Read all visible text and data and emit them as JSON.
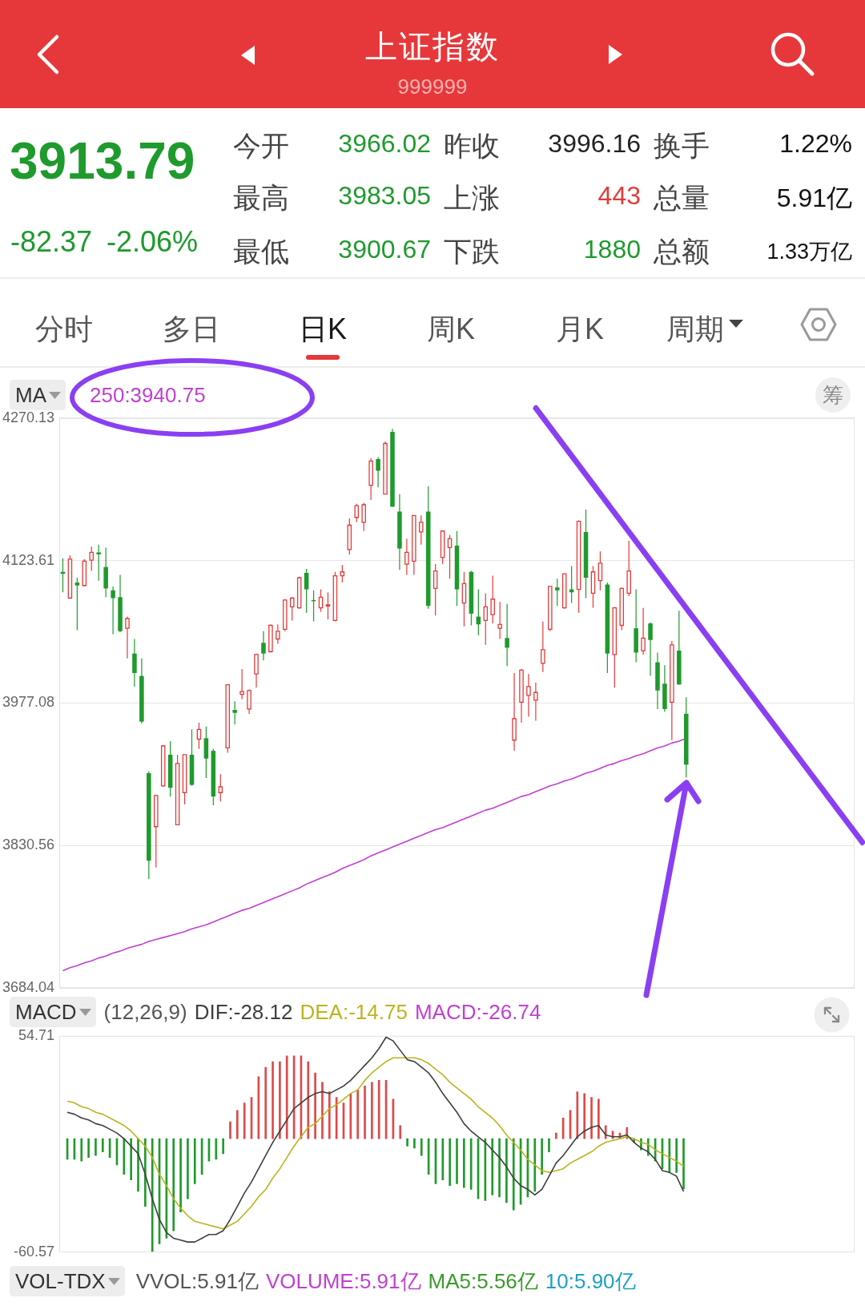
{
  "chart_data": [
    {
      "type": "other",
      "title": "上证指数",
      "subtitle": "999999",
      "annotations": [
        "3913.79",
        "-82.37",
        "-2.06%",
        "今开",
        "3966.02",
        "昨收",
        "3996.16",
        "换手",
        "1.22%",
        "最高",
        "3983.05",
        "上涨",
        "443",
        "总量",
        "5.91亿",
        "最低",
        "3900.67",
        "下跌",
        "1880",
        "总额",
        "1.33万亿",
        "分时",
        "多日",
        "日K",
        "周K",
        "月K",
        "周期"
      ]
    },
    {
      "type": "candlestick",
      "legend_title": "MA",
      "legend": "top left",
      "annotations": [
        "筹"
      ],
      "categories": [
        null,
        null,
        null,
        null,
        null,
        null,
        null,
        null,
        null,
        null,
        null,
        null,
        null,
        null,
        null,
        null,
        null,
        null,
        null,
        null,
        null,
        null,
        null,
        null,
        null,
        null,
        null,
        null,
        null,
        null,
        null,
        null,
        null,
        null,
        null,
        null,
        null,
        null,
        null,
        null,
        null,
        null,
        null,
        null,
        null,
        null,
        null,
        null,
        null,
        null,
        null,
        null,
        null,
        null,
        null,
        null,
        null,
        null,
        null,
        null,
        null,
        null,
        null,
        null,
        null,
        null,
        null,
        null,
        null,
        null,
        null,
        null,
        null,
        null,
        null,
        null,
        null,
        null,
        null,
        null,
        null,
        null,
        null,
        null,
        null,
        null,
        null,
        null
      ],
      "ohlc": [
        [
          4112,
          4126,
          4091,
          4110
        ],
        [
          4085,
          4129,
          4085,
          4125
        ],
        [
          4101,
          4106,
          4052,
          4098
        ],
        [
          4098,
          4125,
          4097,
          4123
        ],
        [
          4124,
          4138,
          4113,
          4132
        ],
        [
          4132,
          4140,
          4103,
          4130
        ],
        [
          4117,
          4137,
          4086,
          4095
        ],
        [
          4093,
          4097,
          4048,
          4085
        ],
        [
          4086,
          4109,
          4050,
          4051
        ],
        [
          4054,
          4066,
          4023,
          4064
        ],
        [
          4028,
          4043,
          3994,
          4008
        ],
        [
          4005,
          4023,
          3956,
          3958
        ],
        [
          3905,
          3907,
          3796,
          3815
        ],
        [
          3850,
          3883,
          3808,
          3882
        ],
        [
          3892,
          3934,
          3891,
          3933
        ],
        [
          3924,
          3938,
          3881,
          3890
        ],
        [
          3852,
          3924,
          3852,
          3915
        ],
        [
          3885,
          3924,
          3873,
          3924
        ],
        [
          3924,
          3950,
          3892,
          3893
        ],
        [
          3940,
          3957,
          3930,
          3950
        ],
        [
          3941,
          3953,
          3900,
          3920
        ],
        [
          3928,
          3930,
          3872,
          3881
        ],
        [
          3885,
          3904,
          3876,
          3891
        ],
        [
          3931,
          3996,
          3926,
          3996
        ],
        [
          3970,
          3979,
          3955,
          3967
        ],
        [
          3986,
          4012,
          3981,
          3989
        ],
        [
          3971,
          3991,
          3966,
          3990
        ],
        [
          4007,
          4028,
          3993,
          4027
        ],
        [
          4039,
          4051,
          4021,
          4028
        ],
        [
          4030,
          4058,
          4029,
          4057
        ],
        [
          4043,
          4058,
          4038,
          4051
        ],
        [
          4053,
          4084,
          4051,
          4083
        ],
        [
          4076,
          4086,
          4062,
          4085
        ],
        [
          4075,
          4107,
          4074,
          4106
        ],
        [
          4111,
          4115,
          4070,
          4094
        ],
        [
          4083,
          4093,
          4061,
          4082
        ],
        [
          4075,
          4094,
          4071,
          4086
        ],
        [
          4077,
          4091,
          4063,
          4078
        ],
        [
          4062,
          4112,
          4061,
          4108
        ],
        [
          4108,
          4119,
          4101,
          4112
        ],
        [
          4135,
          4167,
          4130,
          4160
        ],
        [
          4168,
          4182,
          4163,
          4180
        ],
        [
          4163,
          4183,
          4154,
          4181
        ],
        [
          4201,
          4229,
          4186,
          4226
        ],
        [
          4228,
          4230,
          4199,
          4216
        ],
        [
          4192,
          4246,
          4192,
          4244
        ],
        [
          4256,
          4259,
          4179,
          4179
        ],
        [
          4174,
          4192,
          4114,
          4136
        ],
        [
          4120,
          4146,
          4109,
          4132
        ],
        [
          4123,
          4170,
          4109,
          4170
        ],
        [
          4153,
          4170,
          4140,
          4163
        ],
        [
          4174,
          4200,
          4074,
          4077
        ],
        [
          4095,
          4120,
          4067,
          4113
        ],
        [
          4127,
          4154,
          4120,
          4154
        ],
        [
          4137,
          4150,
          4105,
          4146
        ],
        [
          4139,
          4154,
          4077,
          4094
        ],
        [
          4080,
          4112,
          4056,
          4100
        ],
        [
          4112,
          4113,
          4057,
          4069
        ],
        [
          4066,
          4094,
          4047,
          4058
        ],
        [
          4062,
          4090,
          4037,
          4076
        ],
        [
          4068,
          4108,
          4059,
          4084
        ],
        [
          4054,
          4081,
          4043,
          4058
        ],
        [
          4044,
          4079,
          4015,
          4034
        ],
        [
          3939,
          4008,
          3928,
          3961
        ],
        [
          3978,
          4012,
          3957,
          4011
        ],
        [
          3985,
          4007,
          3963,
          3994
        ],
        [
          3980,
          3998,
          3959,
          3988
        ],
        [
          4018,
          4061,
          4009,
          4032
        ],
        [
          4053,
          4097,
          4051,
          4097
        ],
        [
          4096,
          4105,
          4077,
          4093
        ],
        [
          4075,
          4110,
          4074,
          4110
        ],
        [
          4094,
          4118,
          4080,
          4091
        ],
        [
          4094,
          4165,
          4070,
          4164
        ],
        [
          4153,
          4176,
          4085,
          4106
        ],
        [
          4090,
          4118,
          4075,
          4112
        ],
        [
          4103,
          4133,
          4093,
          4121
        ],
        [
          4099,
          4101,
          4008,
          4028
        ],
        [
          4027,
          4076,
          3993,
          4075
        ],
        [
          4057,
          4096,
          4052,
          4095
        ],
        [
          4090,
          4144,
          4087,
          4113
        ],
        [
          4054,
          4094,
          4019,
          4029
        ],
        [
          4031,
          4075,
          4027,
          4044
        ],
        [
          4059,
          4060,
          4005,
          4042
        ],
        [
          4019,
          4029,
          3971,
          3990
        ],
        [
          3997,
          4016,
          3968,
          3971
        ],
        [
          3978,
          4041,
          3939,
          4037
        ],
        [
          4031,
          4072,
          3996.16,
          3996.16
        ],
        [
          3966.02,
          3983.05,
          3900.67,
          3913.79
        ]
      ],
      "series": [
        {
          "type": "line",
          "name": "250:3940.75",
          "color": "#c03fd0",
          "values": [
            3702,
            3705,
            3707,
            3710,
            3712,
            3715,
            3717,
            3720,
            3722,
            3725,
            3727,
            3729,
            3732,
            3734,
            3736,
            3738,
            3740,
            3742,
            3745,
            3747,
            3749,
            3752,
            3755,
            3758,
            3761,
            3764,
            3766,
            3769,
            3772,
            3775,
            3778,
            3781,
            3784,
            3787,
            3791,
            3794,
            3797,
            3800,
            3803,
            3807,
            3810,
            3813,
            3816,
            3820,
            3823,
            3826,
            3829,
            3832,
            3835,
            3838,
            3841,
            3844,
            3847,
            3849,
            3852,
            3855,
            3858,
            3861,
            3864,
            3867,
            3869,
            3872,
            3875,
            3878,
            3881,
            3883,
            3886,
            3889,
            3892,
            3894,
            3897,
            3899,
            3902,
            3905,
            3907,
            3910,
            3913,
            3915,
            3918,
            3920,
            3923,
            3925,
            3928,
            3931,
            3933,
            3936,
            3938,
            3940.75
          ]
        }
      ],
      "ylim": [
        3684.04,
        4270.13
      ],
      "yticks": [
        3684.04,
        3830.56,
        3977.08,
        4123.61,
        4270.13
      ],
      "grid": "y",
      "tick_labels": "y"
    },
    {
      "type": "bar",
      "legend_title": "MACD",
      "subtitle": "(12,26,9)",
      "legend": "top left",
      "annotations": [
        "MACD:-26.74"
      ],
      "categories": [
        null,
        null,
        null,
        null,
        null,
        null,
        null,
        null,
        null,
        null,
        null,
        null,
        null,
        null,
        null,
        null,
        null,
        null,
        null,
        null,
        null,
        null,
        null,
        null,
        null,
        null,
        null,
        null,
        null,
        null,
        null,
        null,
        null,
        null,
        null,
        null,
        null,
        null,
        null,
        null,
        null,
        null,
        null,
        null,
        null,
        null,
        null,
        null,
        null,
        null,
        null,
        null,
        null,
        null,
        null,
        null,
        null,
        null,
        null,
        null,
        null,
        null,
        null,
        null,
        null,
        null,
        null,
        null,
        null,
        null,
        null,
        null,
        null,
        null,
        null,
        null,
        null,
        null,
        null,
        null,
        null,
        null,
        null,
        null,
        null,
        null,
        null,
        null
      ],
      "series": [
        {
          "type": "line",
          "name": "DIF:-28.12",
          "color": "#3f3f3f",
          "values": [
            14,
            13,
            11,
            10,
            8,
            7,
            5,
            3,
            0,
            -4,
            -8,
            -19,
            -32,
            -43,
            -50,
            -53,
            -54,
            -55,
            -55,
            -53,
            -51,
            -51,
            -49,
            -43,
            -36,
            -29,
            -23,
            -16,
            -9,
            -2,
            4,
            10,
            16,
            19,
            22,
            24,
            25,
            24,
            26,
            28,
            31,
            35,
            39,
            43,
            48,
            54,
            52,
            47,
            42,
            41,
            38,
            35,
            30,
            24,
            19,
            14,
            8,
            4,
            1,
            -2,
            -6,
            -10,
            -15,
            -21,
            -25,
            -27,
            -30,
            -27,
            -20,
            -13,
            -9,
            -4,
            1,
            4,
            6,
            7,
            2,
            1,
            1,
            2,
            -2,
            -5,
            -7,
            -11,
            -17,
            -18,
            -20,
            -28.12
          ]
        },
        {
          "type": "line",
          "name": "DEA:-14.75",
          "color": "#bdb31e",
          "values": [
            20,
            19,
            17,
            16,
            14,
            13,
            11,
            9,
            7,
            4,
            0,
            -4,
            -10,
            -19,
            -25,
            -32,
            -37,
            -41,
            -44,
            -45,
            -46,
            -47,
            -48,
            -46,
            -44,
            -40,
            -36,
            -31,
            -27,
            -21,
            -16,
            -10,
            -4,
            1,
            6,
            8,
            12,
            16,
            18,
            21,
            24,
            26,
            31,
            35,
            38,
            41,
            43,
            43,
            43,
            43,
            42,
            40,
            37,
            34,
            30,
            27,
            24,
            21,
            17,
            14,
            11,
            7,
            2,
            -2,
            -6,
            -11,
            -14,
            -17,
            -18,
            -17,
            -16,
            -13,
            -11,
            -9,
            -7,
            -4,
            -2,
            -1,
            0,
            1,
            0,
            -2,
            -3,
            -6,
            -8,
            -10,
            -12,
            -14.75
          ]
        },
        {
          "values": [
            -11,
            -11,
            -12,
            -10,
            -9,
            -7,
            -10,
            -14,
            -19,
            -22,
            -28,
            -36,
            -60,
            -56,
            -53,
            -49,
            -39,
            -32,
            -24,
            -19,
            -12,
            -11,
            -8,
            9,
            15,
            19,
            22,
            33,
            38,
            41,
            41,
            44,
            44,
            44,
            41,
            35,
            30,
            25,
            22,
            19,
            24,
            26,
            28,
            30,
            31,
            31,
            21,
            7,
            -4,
            -5,
            -9,
            -19,
            -24,
            -22,
            -25,
            -24,
            -26,
            -27,
            -32,
            -33,
            -30,
            -31,
            -34,
            -38,
            -35,
            -31,
            -28,
            -19,
            -7,
            3,
            11,
            15,
            25,
            24,
            22,
            21,
            7,
            4,
            3,
            6,
            -2,
            -6,
            -9,
            -12,
            -16,
            -18,
            -18,
            -26.74
          ],
          "colors": [
            "#1f9a2d",
            "#1f9a2d",
            "#1f9a2d",
            "#1f9a2d",
            "#1f9a2d",
            "#1f9a2d",
            "#1f9a2d",
            "#1f9a2d",
            "#1f9a2d",
            "#1f9a2d",
            "#1f9a2d",
            "#1f9a2d",
            "#1f9a2d",
            "#1f9a2d",
            "#1f9a2d",
            "#1f9a2d",
            "#1f9a2d",
            "#1f9a2d",
            "#1f9a2d",
            "#1f9a2d",
            "#1f9a2d",
            "#1f9a2d",
            "#1f9a2d",
            "#e04848",
            "#e04848",
            "#e04848",
            "#e04848",
            "#e04848",
            "#e04848",
            "#e04848",
            "#e04848",
            "#e04848",
            "#e04848",
            "#e04848",
            "#e04848",
            "#e04848",
            "#e04848",
            "#e04848",
            "#e04848",
            "#e04848",
            "#e04848",
            "#e04848",
            "#e04848",
            "#e04848",
            "#e04848",
            "#e04848",
            "#e04848",
            "#e04848",
            "#1f9a2d",
            "#1f9a2d",
            "#1f9a2d",
            "#1f9a2d",
            "#1f9a2d",
            "#1f9a2d",
            "#1f9a2d",
            "#1f9a2d",
            "#1f9a2d",
            "#1f9a2d",
            "#1f9a2d",
            "#1f9a2d",
            "#1f9a2d",
            "#1f9a2d",
            "#1f9a2d",
            "#1f9a2d",
            "#1f9a2d",
            "#1f9a2d",
            "#1f9a2d",
            "#1f9a2d",
            "#1f9a2d",
            "#e04848",
            "#e04848",
            "#e04848",
            "#e04848",
            "#e04848",
            "#e04848",
            "#e04848",
            "#e04848",
            "#e04848",
            "#e04848",
            "#e04848",
            "#1f9a2d",
            "#1f9a2d",
            "#1f9a2d",
            "#1f9a2d",
            "#1f9a2d",
            "#1f9a2d",
            "#1f9a2d",
            "#1f9a2d"
          ]
        }
      ],
      "ylim": [
        -60.57,
        54.71
      ],
      "yticks": [
        54.71,
        -60.57
      ],
      "tick_labels": "y"
    },
    {
      "type": "other",
      "title": "VOL-TDX",
      "annotations": [
        "VVOL:5.91亿",
        "VOLUME:5.91亿",
        "MA5:5.56亿",
        "10:5.90亿"
      ]
    }
  ]
}
